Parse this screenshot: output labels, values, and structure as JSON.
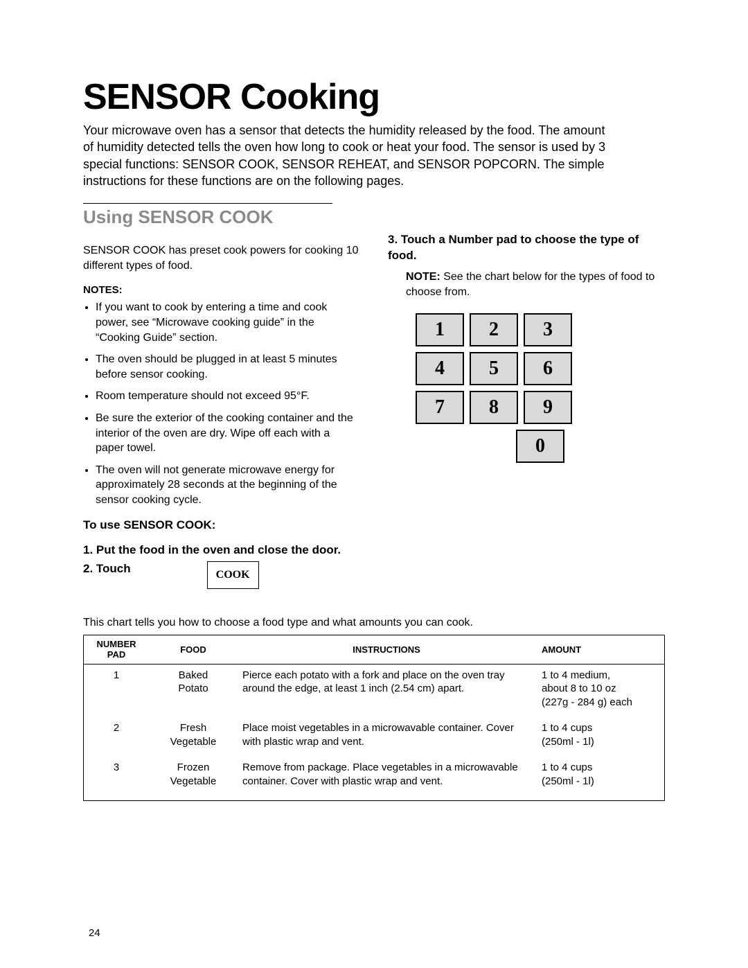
{
  "title": "SENSOR Cooking",
  "intro": "Your microwave oven has a sensor that detects the humidity released by the food. The amount of humidity detected tells the oven how long to cook or heat your food. The sensor is used by 3 special functions: SENSOR COOK, SENSOR REHEAT, and SENSOR POPCORN. The simple instructions for these functions are on the following pages.",
  "subtitle": "Using SENSOR COOK",
  "left": {
    "lead": "SENSOR COOK has preset cook powers for cooking 10 different types of food.",
    "notes_label": "NOTES:",
    "notes": [
      "If you want to cook by entering a time and cook power, see “Microwave cooking guide” in the “Cooking Guide” section.",
      "The oven should be plugged in at least 5 minutes before sensor cooking.",
      "Room temperature should not exceed 95°F.",
      "Be sure the exterior of the cooking container and the interior of the oven are dry. Wipe off each with a paper towel.",
      "The oven will not generate microwave energy for approximately 28 seconds at the beginning of the sensor cooking cycle."
    ],
    "to_use": "To use SENSOR COOK:",
    "step1": "1. Put the food in the oven and close the door.",
    "step2_label": "2. Touch",
    "cook_button": "COOK"
  },
  "right": {
    "step3": "3. Touch a Number pad to choose the type of food.",
    "note_bold": "NOTE:",
    "note_rest": " See the chart below for the types of food to choose from.",
    "keypad": [
      [
        "1",
        "2",
        "3"
      ],
      [
        "4",
        "5",
        "6"
      ],
      [
        "7",
        "8",
        "9"
      ],
      [
        "0"
      ]
    ]
  },
  "chart_intro": "This chart tells you how to choose a food type and what amounts you can cook.",
  "chart": {
    "headers": {
      "num1": "NUMBER",
      "num2": "PAD",
      "food": "FOOD",
      "instr": "INSTRUCTIONS",
      "amt": "AMOUNT"
    },
    "rows": [
      {
        "num": "1",
        "food_l1": "Baked",
        "food_l2": "Potato",
        "instr": "Pierce each potato with a fork and place on the oven tray around the edge, at least 1 inch (2.54 cm) apart.",
        "amt_l1": "1 to 4 medium,",
        "amt_l2": "about 8 to 10 oz",
        "amt_l3": "(227g - 284 g) each"
      },
      {
        "num": "2",
        "food_l1": "Fresh",
        "food_l2": "Vegetable",
        "instr": "Place moist vegetables in a microwavable container. Cover with plastic wrap and vent.",
        "amt_l1": "1 to 4 cups",
        "amt_l2": "(250ml - 1l)",
        "amt_l3": ""
      },
      {
        "num": "3",
        "food_l1": "Frozen",
        "food_l2": "Vegetable",
        "instr": "Remove from package. Place vegetables in a microwavable container. Cover with plastic wrap and vent.",
        "amt_l1": "1 to 4 cups",
        "amt_l2": "(250ml - 1l)",
        "amt_l3": ""
      }
    ]
  },
  "page_number": "24",
  "style": {
    "keypad_bg": "#d9d9d9",
    "keypad_border": "#000000",
    "subtitle_color": "#8a8a8a"
  }
}
